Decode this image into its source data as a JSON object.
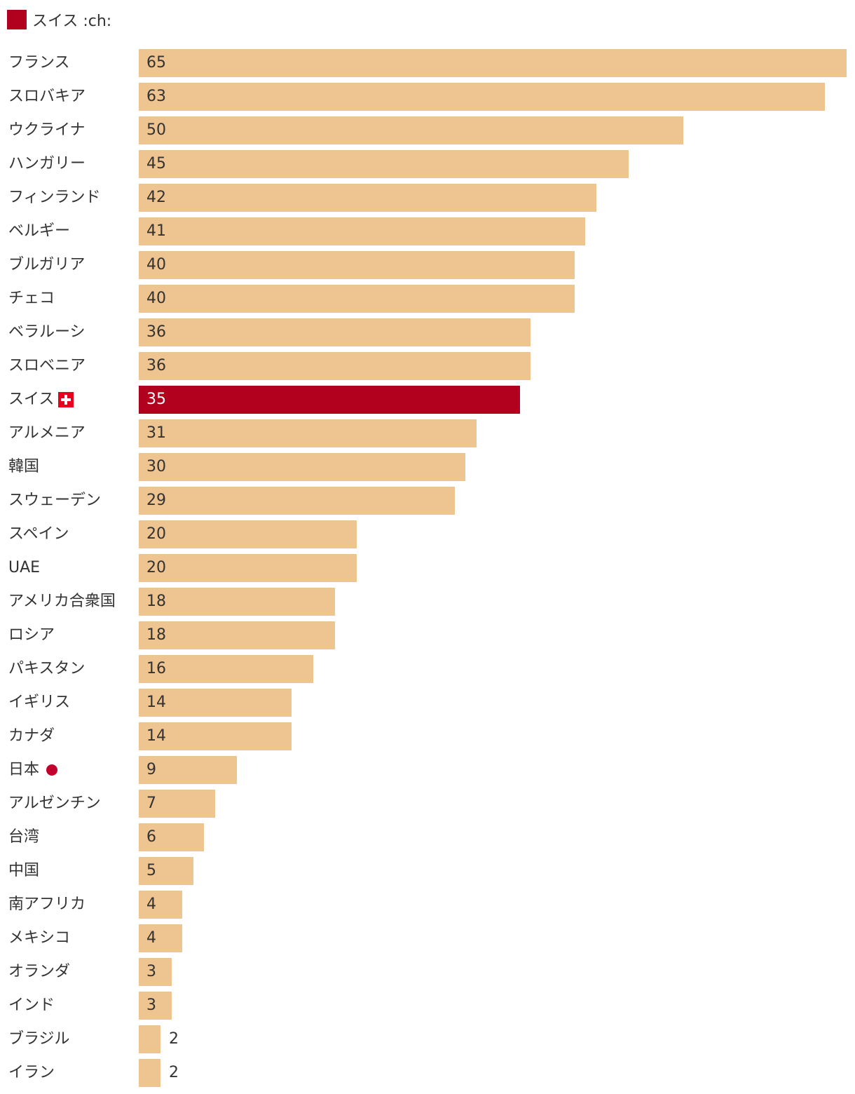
{
  "legend": {
    "label": "スイス :ch:",
    "color": "#b2001f"
  },
  "colors": {
    "bar": "#eec490",
    "highlight": "#b2001f",
    "label_inside": "#333333",
    "label_inside_highlight": "#ffffff",
    "label_outside": "#333333"
  },
  "chart_data": {
    "type": "bar",
    "orientation": "horizontal",
    "title": "",
    "xlabel": "",
    "ylabel": "",
    "xlim": [
      0,
      65
    ],
    "grid": false,
    "legend_position": "top-left",
    "highlight": "スイス",
    "categories": [
      "フランス",
      "スロバキア",
      "ウクライナ",
      "ハンガリー",
      "フィンランド",
      "ベルギー",
      "ブルガリア",
      "チェコ",
      "ベラルーシ",
      "スロベニア",
      "スイス",
      "アルメニア",
      "韓国",
      "スウェーデン",
      "スペイン",
      "UAE",
      "アメリカ合衆国",
      "ロシア",
      "パキスタン",
      "イギリス",
      "カナダ",
      "日本",
      "アルゼンチン",
      "台湾",
      "中国",
      "南アフリカ",
      "メキシコ",
      "オランダ",
      "インド",
      "ブラジル",
      "イラン"
    ],
    "values": [
      65,
      63,
      50,
      45,
      42,
      41,
      40,
      40,
      36,
      36,
      35,
      31,
      30,
      29,
      20,
      20,
      18,
      18,
      16,
      14,
      14,
      9,
      7,
      6,
      5,
      4,
      4,
      3,
      3,
      2,
      2
    ],
    "icons": {
      "スイス": "swiss-flag-icon",
      "日本": "japan-dot-icon"
    }
  }
}
